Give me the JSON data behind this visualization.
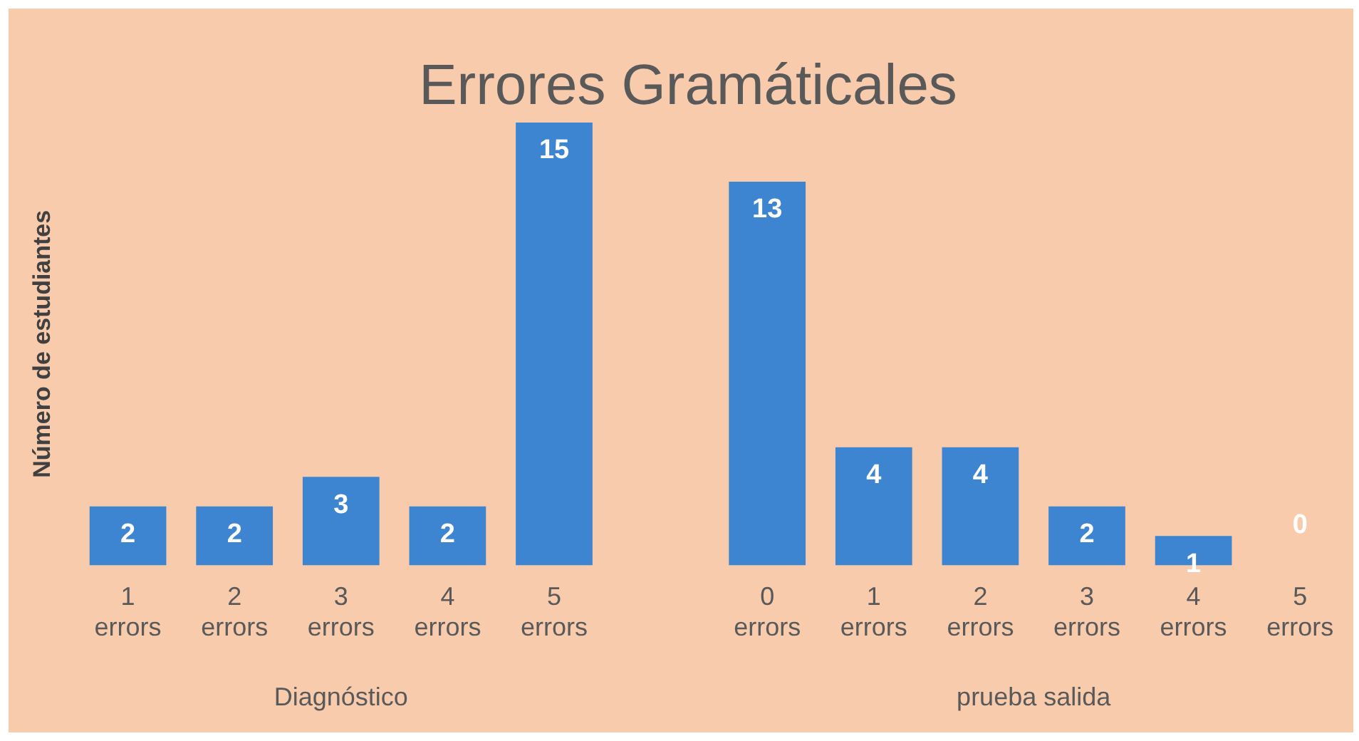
{
  "chart_data": {
    "type": "bar",
    "title": "Errores Gramáticales",
    "ylabel": "Número de estudiantes",
    "categories": [
      "1 errors",
      "2 errors",
      "3 errors",
      "4 errors",
      "5 errors",
      null,
      "0 errors",
      "1 errors",
      "2 errors",
      "3 errors",
      "4 errors",
      "5 errors"
    ],
    "values": [
      2,
      2,
      3,
      2,
      15,
      null,
      13,
      4,
      4,
      2,
      1,
      0
    ],
    "color": "#3d85d1",
    "tick_labels": "x",
    "data_labels": true,
    "annotations": [
      "Diagnóstico",
      "prueba salida"
    ],
    "grid": false,
    "legend": false
  }
}
